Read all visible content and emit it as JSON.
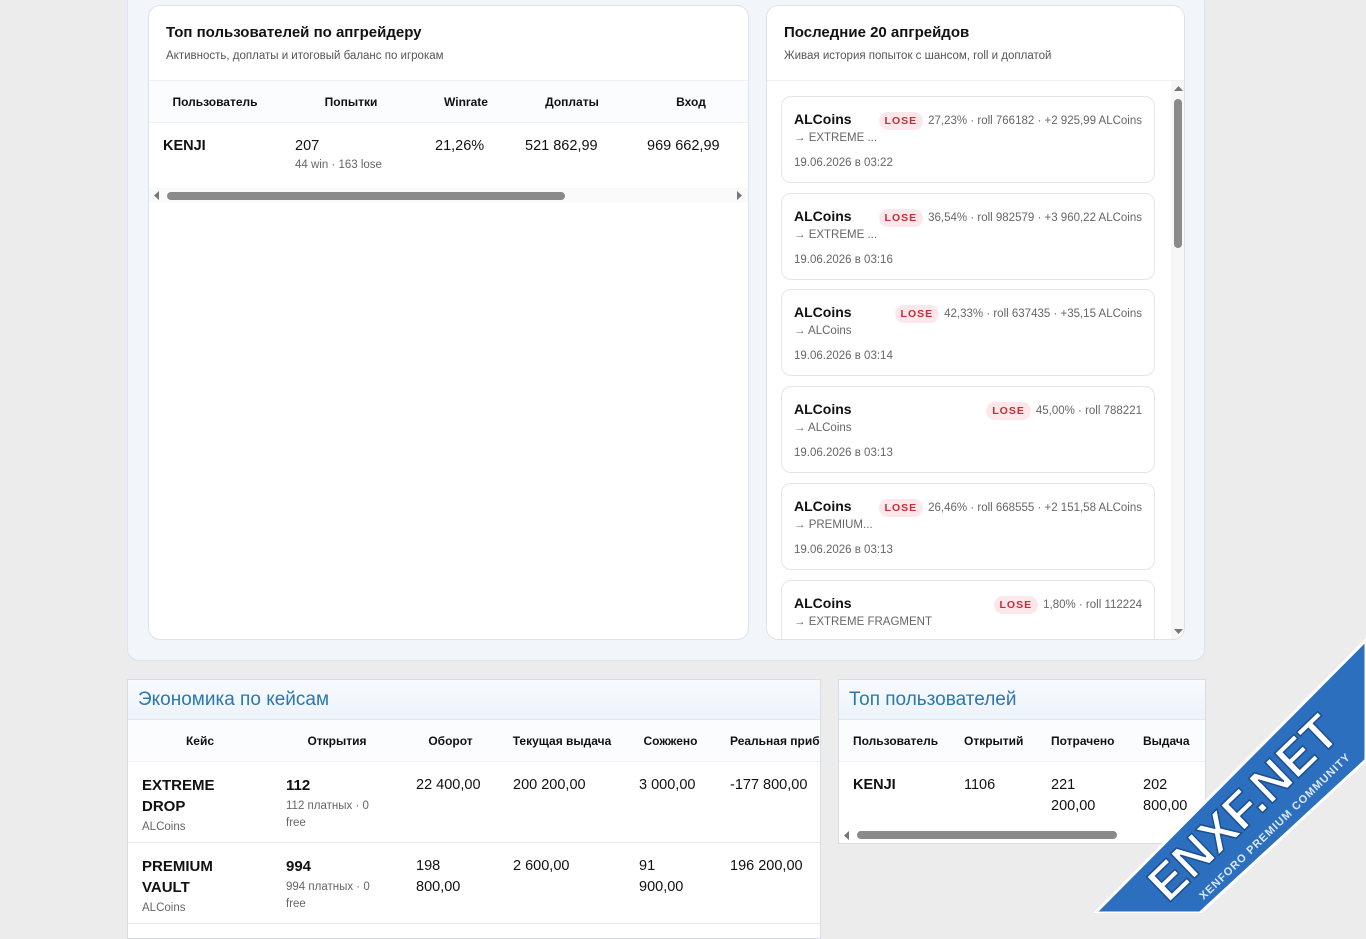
{
  "upgrader_top": {
    "title": "Топ пользователей по апгрейдеру",
    "subtitle": "Активность, доплаты и итоговый баланс по игрокам",
    "columns": [
      "Пользователь",
      "Попытки",
      "Winrate",
      "Доплаты",
      "Вход"
    ],
    "rows": [
      {
        "user": "KENJI",
        "attempts": "207",
        "attempts_detail": "44 win · 163 lose",
        "winrate": "21,26%",
        "surcharges": "521 862,99",
        "input": "969 662,99"
      }
    ]
  },
  "recent": {
    "title": "Последние 20 апгрейдов",
    "subtitle": "Живая история попыток с шансом, roll и доплатой",
    "items": [
      {
        "name": "ALCoins",
        "status": "LOSE",
        "info": "27,23% · roll 766182 · +2 925,99 ALCoins",
        "target": "→ EXTREME ...",
        "date": "19.06.2026 в 03:22"
      },
      {
        "name": "ALCoins",
        "status": "LOSE",
        "info": "36,54% · roll 982579 · +3 960,22 ALCoins",
        "target": "→ EXTREME ...",
        "date": "19.06.2026 в 03:16"
      },
      {
        "name": "ALCoins",
        "status": "LOSE",
        "info": "42,33% · roll 637435 · +35,15 ALCoins",
        "target": "→ ALCoins",
        "date": "19.06.2026 в 03:14"
      },
      {
        "name": "ALCoins",
        "status": "LOSE",
        "info": "45,00% · roll 788221",
        "target": "→ ALCoins",
        "date": "19.06.2026 в 03:13"
      },
      {
        "name": "ALCoins",
        "status": "LOSE",
        "info": "26,46% · roll 668555 · +2 151,58 ALCoins",
        "target": "→ PREMIUM...",
        "date": "19.06.2026 в 03:13"
      },
      {
        "name": "ALCoins",
        "status": "LOSE",
        "info": "1,80% · roll 112224",
        "target": "→ EXTREME FRAGMENT"
      }
    ]
  },
  "economy": {
    "title": "Экономика по кейсам",
    "columns": [
      "Кейс",
      "Открытия",
      "Оборот",
      "Текущая выдача",
      "Сожжено",
      "Реальная прибыль"
    ],
    "rows": [
      {
        "case": "EXTREME DROP",
        "currency": "ALCoins",
        "opens": "112",
        "opens_detail": "112 платных · 0 free",
        "turnover": "22 400,00",
        "payout": "200 200,00",
        "burned": "3 000,00",
        "profit": "-177 800,00"
      },
      {
        "case": "PREMIUM VAULT",
        "currency": "ALCoins",
        "opens": "994",
        "opens_detail": "994 платных · 0 free",
        "turnover": "198 800,00",
        "payout": "2 600,00",
        "burned": "91 900,00",
        "profit": "196 200,00"
      }
    ]
  },
  "top_users": {
    "title": "Топ пользователей",
    "columns": [
      "Пользователь",
      "Открытий",
      "Потрачено",
      "Выдача"
    ],
    "rows": [
      {
        "user": "KENJI",
        "opens": "1106",
        "spent": "221 200,00",
        "payout": "202 800,00"
      }
    ]
  },
  "watermark": {
    "title": "ENXF.NET",
    "subtitle": "XENFORO PREMIUM COMMUNITY"
  }
}
